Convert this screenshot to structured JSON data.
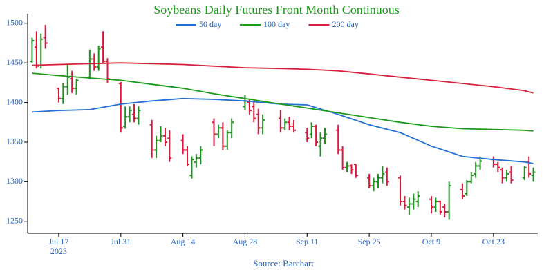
{
  "chart_data": {
    "type": "ohlc",
    "title": "Soybeans Daily Futures Front Month Continuous",
    "source": "Source: Barchart",
    "up_color": "#1f8f1f",
    "down_color": "#e0153a",
    "x": [
      "2023-07-11",
      "2023-07-12",
      "2023-07-13",
      "2023-07-14",
      "2023-07-17",
      "2023-07-18",
      "2023-07-19",
      "2023-07-20",
      "2023-07-21",
      "2023-07-24",
      "2023-07-25",
      "2023-07-26",
      "2023-07-27",
      "2023-07-28",
      "2023-07-31",
      "2023-08-01",
      "2023-08-02",
      "2023-08-03",
      "2023-08-04",
      "2023-08-07",
      "2023-08-08",
      "2023-08-09",
      "2023-08-10",
      "2023-08-11",
      "2023-08-14",
      "2023-08-15",
      "2023-08-16",
      "2023-08-17",
      "2023-08-18",
      "2023-08-21",
      "2023-08-22",
      "2023-08-23",
      "2023-08-24",
      "2023-08-25",
      "2023-08-28",
      "2023-08-29",
      "2023-08-30",
      "2023-08-31",
      "2023-09-01",
      "2023-09-05",
      "2023-09-06",
      "2023-09-07",
      "2023-09-08",
      "2023-09-11",
      "2023-09-12",
      "2023-09-13",
      "2023-09-14",
      "2023-09-15",
      "2023-09-18",
      "2023-09-19",
      "2023-09-20",
      "2023-09-21",
      "2023-09-22",
      "2023-09-25",
      "2023-09-26",
      "2023-09-27",
      "2023-09-28",
      "2023-09-29",
      "2023-10-02",
      "2023-10-03",
      "2023-10-04",
      "2023-10-05",
      "2023-10-06",
      "2023-10-09",
      "2023-10-10",
      "2023-10-11",
      "2023-10-12",
      "2023-10-13",
      "2023-10-16",
      "2023-10-17",
      "2023-10-18",
      "2023-10-19",
      "2023-10-20",
      "2023-10-23",
      "2023-10-24",
      "2023-10-25",
      "2023-10-26",
      "2023-10-27",
      "2023-10-30",
      "2023-10-31",
      "2023-11-01"
    ],
    "open": [
      1452,
      1470,
      1447,
      1482,
      1418,
      1405,
      1420,
      1430,
      1418,
      1432,
      1455,
      1445,
      1470,
      1452,
      1424,
      1370,
      1382,
      1385,
      1380,
      1372,
      1340,
      1352,
      1358,
      1355,
      1352,
      1340,
      1308,
      1325,
      1330,
      1375,
      1360,
      1368,
      1345,
      1362,
      1395,
      1400,
      1395,
      1385,
      1368,
      1380,
      1368,
      1375,
      1370,
      1362,
      1360,
      1370,
      1345,
      1355,
      1365,
      1340,
      1318,
      1320,
      1322,
      1305,
      1295,
      1300,
      1305,
      1312,
      1305,
      1275,
      1268,
      1272,
      1275,
      1278,
      1268,
      1275,
      1268,
      1262,
      1290,
      1285,
      1300,
      1310,
      1320,
      1328,
      1322,
      1315,
      1305,
      1312,
      1305,
      1325,
      1308
    ],
    "high": [
      1482,
      1490,
      1487,
      1498,
      1418,
      1425,
      1448,
      1440,
      1430,
      1467,
      1462,
      1472,
      1490,
      1456,
      1426,
      1395,
      1395,
      1398,
      1395,
      1378,
      1358,
      1370,
      1368,
      1365,
      1360,
      1345,
      1332,
      1335,
      1345,
      1380,
      1372,
      1375,
      1365,
      1380,
      1410,
      1405,
      1402,
      1392,
      1385,
      1390,
      1380,
      1382,
      1378,
      1368,
      1375,
      1372,
      1362,
      1368,
      1372,
      1345,
      1325,
      1322,
      1322,
      1310,
      1305,
      1310,
      1320,
      1318,
      1308,
      1282,
      1280,
      1285,
      1288,
      1282,
      1280,
      1276,
      1272,
      1300,
      1298,
      1302,
      1312,
      1325,
      1332,
      1332,
      1325,
      1318,
      1315,
      1320,
      1320,
      1332,
      1318
    ],
    "low": [
      1450,
      1443,
      1443,
      1468,
      1400,
      1398,
      1410,
      1412,
      1410,
      1430,
      1440,
      1440,
      1450,
      1425,
      1362,
      1367,
      1375,
      1375,
      1372,
      1330,
      1330,
      1350,
      1345,
      1325,
      1335,
      1320,
      1304,
      1318,
      1322,
      1345,
      1355,
      1340,
      1340,
      1355,
      1390,
      1385,
      1375,
      1360,
      1360,
      1362,
      1365,
      1365,
      1362,
      1350,
      1355,
      1345,
      1332,
      1348,
      1335,
      1315,
      1312,
      1310,
      1305,
      1292,
      1288,
      1292,
      1298,
      1295,
      1270,
      1265,
      1258,
      1265,
      1268,
      1260,
      1262,
      1258,
      1255,
      1252,
      1278,
      1282,
      1298,
      1305,
      1315,
      1318,
      1312,
      1298,
      1300,
      1298,
      1302,
      1305,
      1300
    ],
    "close": [
      1478,
      1446,
      1480,
      1475,
      1405,
      1420,
      1432,
      1418,
      1428,
      1455,
      1445,
      1468,
      1452,
      1430,
      1368,
      1382,
      1390,
      1380,
      1390,
      1340,
      1352,
      1358,
      1350,
      1330,
      1340,
      1322,
      1328,
      1330,
      1340,
      1360,
      1368,
      1345,
      1362,
      1375,
      1402,
      1390,
      1380,
      1368,
      1378,
      1368,
      1375,
      1370,
      1365,
      1355,
      1370,
      1350,
      1355,
      1360,
      1340,
      1318,
      1320,
      1315,
      1308,
      1295,
      1300,
      1305,
      1310,
      1300,
      1275,
      1270,
      1272,
      1278,
      1282,
      1268,
      1275,
      1262,
      1262,
      1295,
      1282,
      1300,
      1308,
      1320,
      1326,
      1322,
      1318,
      1305,
      1310,
      1302,
      1318,
      1310,
      1312
    ],
    "series": [
      {
        "name": "50 day",
        "color": "#1f6fd6",
        "x": [
          "2023-07-11",
          "2023-07-17",
          "2023-07-24",
          "2023-07-31",
          "2023-08-07",
          "2023-08-14",
          "2023-08-21",
          "2023-08-28",
          "2023-09-05",
          "2023-09-11",
          "2023-09-18",
          "2023-09-25",
          "2023-10-02",
          "2023-10-09",
          "2023-10-16",
          "2023-10-23",
          "2023-10-30",
          "2023-11-01"
        ],
        "values": [
          1388,
          1390,
          1391,
          1398,
          1402,
          1405,
          1404,
          1402,
          1398,
          1397,
          1385,
          1372,
          1362,
          1345,
          1332,
          1328,
          1325,
          1323
        ]
      },
      {
        "name": "100 day",
        "color": "#1a9a1a",
        "x": [
          "2023-07-11",
          "2023-07-17",
          "2023-07-24",
          "2023-07-31",
          "2023-08-07",
          "2023-08-14",
          "2023-08-21",
          "2023-08-28",
          "2023-09-05",
          "2023-09-11",
          "2023-09-18",
          "2023-09-25",
          "2023-10-02",
          "2023-10-09",
          "2023-10-16",
          "2023-10-23",
          "2023-10-30",
          "2023-11-01"
        ],
        "values": [
          1437,
          1434,
          1431,
          1428,
          1423,
          1418,
          1411,
          1405,
          1398,
          1393,
          1387,
          1381,
          1375,
          1370,
          1367,
          1366,
          1365,
          1364
        ]
      },
      {
        "name": "200 day",
        "color": "#d6203c",
        "x": [
          "2023-07-11",
          "2023-07-17",
          "2023-07-24",
          "2023-07-31",
          "2023-08-07",
          "2023-08-14",
          "2023-08-21",
          "2023-08-28",
          "2023-09-05",
          "2023-09-11",
          "2023-09-18",
          "2023-09-25",
          "2023-10-02",
          "2023-10-09",
          "2023-10-16",
          "2023-10-23",
          "2023-10-30",
          "2023-11-01"
        ],
        "values": [
          1447,
          1448,
          1449,
          1450,
          1449,
          1448,
          1446,
          1444,
          1443,
          1442,
          1440,
          1436,
          1432,
          1428,
          1424,
          1420,
          1415,
          1412
        ]
      }
    ],
    "xlim": [
      "2023-07-10",
      "2023-11-02"
    ],
    "xticks": [
      {
        "value": "2023-07-17",
        "label": "Jul 17\n2023"
      },
      {
        "value": "2023-07-31",
        "label": "Jul 31"
      },
      {
        "value": "2023-08-14",
        "label": "Aug 14"
      },
      {
        "value": "2023-08-28",
        "label": "Aug 28"
      },
      {
        "value": "2023-09-11",
        "label": "Sep 11"
      },
      {
        "value": "2023-09-25",
        "label": "Sep 25"
      },
      {
        "value": "2023-10-09",
        "label": "Oct 9"
      },
      {
        "value": "2023-10-23",
        "label": "Oct 23"
      }
    ],
    "ylim": [
      1235,
      1512
    ],
    "yticks": [
      1250,
      1300,
      1350,
      1400,
      1450,
      1500
    ],
    "legend": "top"
  }
}
